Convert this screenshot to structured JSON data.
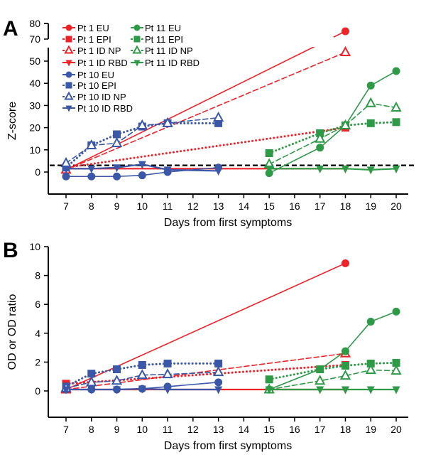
{
  "chart_data": [
    {
      "panel": "A",
      "type": "line",
      "ylabel": "Z-score",
      "xlabel": "Days from first symptoms",
      "x_ticks": [
        7,
        8,
        9,
        10,
        11,
        12,
        13,
        14,
        15,
        16,
        17,
        18,
        19,
        20
      ],
      "y_ticks_lower": [
        0,
        10,
        20,
        30,
        40,
        50
      ],
      "y_ticks_upper": [
        70,
        80
      ],
      "ylim": [
        -10,
        80
      ],
      "axis_break": [
        55,
        68
      ],
      "cutoff_line": 3,
      "legend_placement": "top-left",
      "series": [
        {
          "name": "Pt 1 EU",
          "color": "#ee2229",
          "marker": "circle",
          "style": "solid",
          "x": [
            7,
            18
          ],
          "y": [
            1,
            75
          ]
        },
        {
          "name": "Pt 1 EPI",
          "color": "#ee2229",
          "marker": "square",
          "style": "dotted",
          "x": [
            7,
            18
          ],
          "y": [
            2,
            20
          ]
        },
        {
          "name": "Pt 1 ID NP",
          "color": "#ee2229",
          "marker": "triangle-open",
          "style": "dashed",
          "x": [
            7,
            18
          ],
          "y": [
            1,
            54
          ]
        },
        {
          "name": "Pt 1 ID RBD",
          "color": "#ee2229",
          "marker": "triangle-down",
          "style": "solid",
          "x": [
            7,
            18
          ],
          "y": [
            1.5,
            1.5
          ]
        },
        {
          "name": "Pt 10 EU",
          "color": "#3a57a8",
          "marker": "circle",
          "style": "solid",
          "x": [
            7,
            8,
            9,
            10,
            11,
            13
          ],
          "y": [
            -2,
            -2,
            -2,
            -1.5,
            0,
            2
          ]
        },
        {
          "name": "Pt 10 EPI",
          "color": "#3a57a8",
          "marker": "square",
          "style": "dotted",
          "x": [
            7,
            8,
            9,
            10,
            11,
            13
          ],
          "y": [
            2,
            12,
            17,
            20.5,
            22,
            22
          ]
        },
        {
          "name": "Pt 10 ID NP",
          "color": "#3a57a8",
          "marker": "triangle-open",
          "style": "dashed",
          "x": [
            7,
            8,
            9,
            10,
            11,
            13
          ],
          "y": [
            4,
            12,
            13,
            21,
            22,
            24.5
          ]
        },
        {
          "name": "Pt 10 ID RBD",
          "color": "#3a57a8",
          "marker": "triangle-down",
          "style": "solid",
          "x": [
            7,
            8,
            9,
            10,
            11,
            13
          ],
          "y": [
            1.5,
            1.5,
            2,
            3.5,
            1,
            0.5
          ]
        },
        {
          "name": "Pt 11 EU",
          "color": "#2e9a47",
          "marker": "circle",
          "style": "solid",
          "x": [
            15,
            17,
            18,
            19,
            20
          ],
          "y": [
            -0.5,
            11,
            21,
            39,
            45.5
          ]
        },
        {
          "name": "Pt 11 EPI",
          "color": "#2e9a47",
          "marker": "square",
          "style": "dotted",
          "x": [
            15,
            17,
            18,
            19,
            20
          ],
          "y": [
            8.5,
            17.5,
            21,
            22,
            22.5
          ]
        },
        {
          "name": "Pt 11 ID NP",
          "color": "#2e9a47",
          "marker": "triangle-open",
          "style": "dashed",
          "x": [
            15,
            17,
            18,
            19,
            20
          ],
          "y": [
            3.5,
            15,
            21,
            31,
            29
          ]
        },
        {
          "name": "Pt 11 ID RBD",
          "color": "#2e9a47",
          "marker": "triangle-down",
          "style": "solid",
          "x": [
            15,
            17,
            18,
            19,
            20
          ],
          "y": [
            1.5,
            1.5,
            1.5,
            1,
            1.5
          ]
        }
      ]
    },
    {
      "panel": "B",
      "type": "line",
      "ylabel": "OD or OD ratio",
      "xlabel": "Days from first symptoms",
      "x_ticks": [
        7,
        8,
        9,
        10,
        11,
        12,
        13,
        14,
        15,
        16,
        17,
        18,
        19,
        20
      ],
      "y_ticks": [
        0,
        2,
        4,
        6,
        8,
        10
      ],
      "ylim": [
        -1.8,
        10
      ],
      "series": [
        {
          "name": "Pt 1 EU",
          "color": "#ee2229",
          "marker": "circle",
          "style": "solid",
          "x": [
            7,
            18
          ],
          "y": [
            0.1,
            8.85
          ]
        },
        {
          "name": "Pt 1 EPI",
          "color": "#ee2229",
          "marker": "square",
          "style": "dotted",
          "x": [
            7,
            18
          ],
          "y": [
            0.5,
            1.8
          ]
        },
        {
          "name": "Pt 1 ID NP",
          "color": "#ee2229",
          "marker": "triangle-open",
          "style": "dashed",
          "x": [
            7,
            18
          ],
          "y": [
            0.1,
            2.6
          ]
        },
        {
          "name": "Pt 1 ID RBD",
          "color": "#ee2229",
          "marker": "triangle-down",
          "style": "solid",
          "x": [
            7,
            18
          ],
          "y": [
            0.1,
            0.1
          ]
        },
        {
          "name": "Pt 10 EU",
          "color": "#3a57a8",
          "marker": "circle",
          "style": "solid",
          "x": [
            7,
            8,
            9,
            10,
            11,
            13
          ],
          "y": [
            0.1,
            0.1,
            0.1,
            0.15,
            0.3,
            0.6
          ]
        },
        {
          "name": "Pt 10 EPI",
          "color": "#3a57a8",
          "marker": "square",
          "style": "dotted",
          "x": [
            7,
            8,
            9,
            10,
            11,
            13
          ],
          "y": [
            0.3,
            1.2,
            1.5,
            1.8,
            1.9,
            1.9
          ]
        },
        {
          "name": "Pt 10 ID NP",
          "color": "#3a57a8",
          "marker": "triangle-open",
          "style": "dashed",
          "x": [
            7,
            8,
            9,
            10,
            11,
            13
          ],
          "y": [
            0.2,
            0.6,
            0.7,
            1.1,
            1.15,
            1.3
          ]
        },
        {
          "name": "Pt 10 ID RBD",
          "color": "#3a57a8",
          "marker": "triangle-down",
          "style": "solid",
          "x": [
            7,
            8,
            9,
            10,
            11,
            13
          ],
          "y": [
            0.1,
            0.1,
            0.1,
            0.15,
            0.1,
            0.1
          ]
        },
        {
          "name": "Pt 11 EU",
          "color": "#2e9a47",
          "marker": "circle",
          "style": "solid",
          "x": [
            15,
            17,
            18,
            19,
            20
          ],
          "y": [
            0.1,
            1.5,
            2.75,
            4.8,
            5.5
          ]
        },
        {
          "name": "Pt 11 EPI",
          "color": "#2e9a47",
          "marker": "square",
          "style": "dotted",
          "x": [
            15,
            17,
            18,
            19,
            20
          ],
          "y": [
            0.8,
            1.5,
            1.75,
            1.9,
            1.95
          ]
        },
        {
          "name": "Pt 11 ID NP",
          "color": "#2e9a47",
          "marker": "triangle-open",
          "style": "dashed",
          "x": [
            15,
            17,
            18,
            19,
            20
          ],
          "y": [
            0.1,
            0.7,
            1.05,
            1.45,
            1.4
          ]
        },
        {
          "name": "Pt 11 ID RBD",
          "color": "#2e9a47",
          "marker": "triangle-down",
          "style": "solid",
          "x": [
            15,
            17,
            18,
            19,
            20
          ],
          "y": [
            0.1,
            0.1,
            0.1,
            0.1,
            0.1
          ]
        }
      ]
    }
  ]
}
